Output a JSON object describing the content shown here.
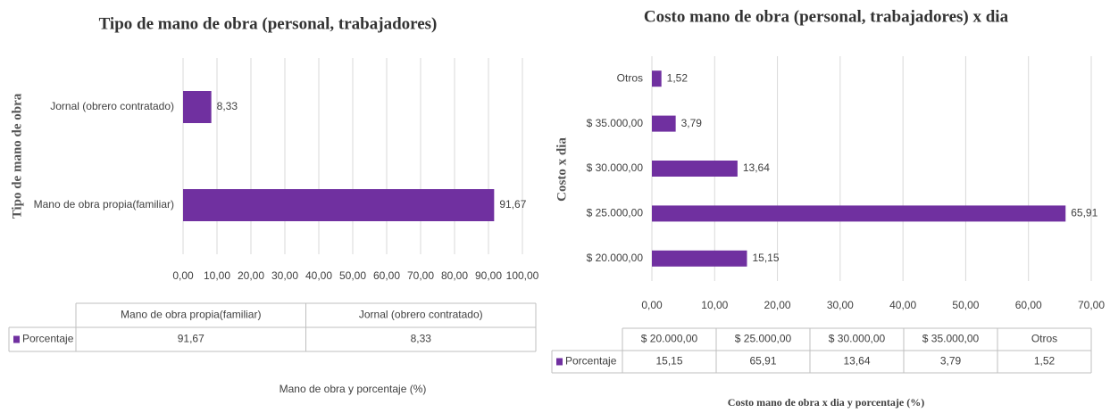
{
  "chart_data": [
    {
      "type": "bar",
      "orientation": "horizontal",
      "title": "Tipo de  mano de obra (personal, trabajadores)",
      "y_label": "Tipo de mano de obra",
      "x_label": "Mano de obra y porcentaje (%)",
      "categories": [
        "Mano de obra propia(familiar)",
        "Jornal (obrero contratado)"
      ],
      "series": [
        {
          "name": "Porcentaje",
          "color": "#7030a0",
          "values": [
            91.67,
            8.33
          ],
          "value_labels": [
            "91,67",
            "8,33"
          ]
        }
      ],
      "xlim": [
        0,
        100
      ],
      "xticks": [
        {
          "value": 0,
          "label": "0,00"
        },
        {
          "value": 10,
          "label": "10,00"
        },
        {
          "value": 20,
          "label": "20,00"
        },
        {
          "value": 30,
          "label": "30,00"
        },
        {
          "value": 40,
          "label": "40,00"
        },
        {
          "value": 50,
          "label": "50,00"
        },
        {
          "value": 60,
          "label": "60,00"
        },
        {
          "value": 70,
          "label": "70,00"
        },
        {
          "value": 80,
          "label": "80,00"
        },
        {
          "value": 90,
          "label": "90,00"
        },
        {
          "value": 100,
          "label": "100,00"
        }
      ],
      "grid": true
    },
    {
      "type": "bar",
      "orientation": "horizontal",
      "title": "Costo mano de obra (personal, trabajadores) x dia",
      "y_label": "Costo x dia",
      "x_label": "Costo mano de obra x dia y porcentaje (%)",
      "categories": [
        "$ 20.000,00",
        "$ 25.000,00",
        "$ 30.000,00",
        "$ 35.000,00",
        "Otros"
      ],
      "series": [
        {
          "name": "Porcentaje",
          "color": "#7030a0",
          "values": [
            15.15,
            65.91,
            13.64,
            3.79,
            1.52
          ],
          "value_labels": [
            "15,15",
            "65,91",
            "13,64",
            "3,79",
            "1,52"
          ]
        }
      ],
      "xlim": [
        0,
        70
      ],
      "xticks": [
        {
          "value": 0,
          "label": "0,00"
        },
        {
          "value": 10,
          "label": "10,00"
        },
        {
          "value": 20,
          "label": "20,00"
        },
        {
          "value": 30,
          "label": "30,00"
        },
        {
          "value": 40,
          "label": "40,00"
        },
        {
          "value": 50,
          "label": "50,00"
        },
        {
          "value": 60,
          "label": "60,00"
        },
        {
          "value": 70,
          "label": "70,00"
        }
      ],
      "grid": true
    }
  ]
}
